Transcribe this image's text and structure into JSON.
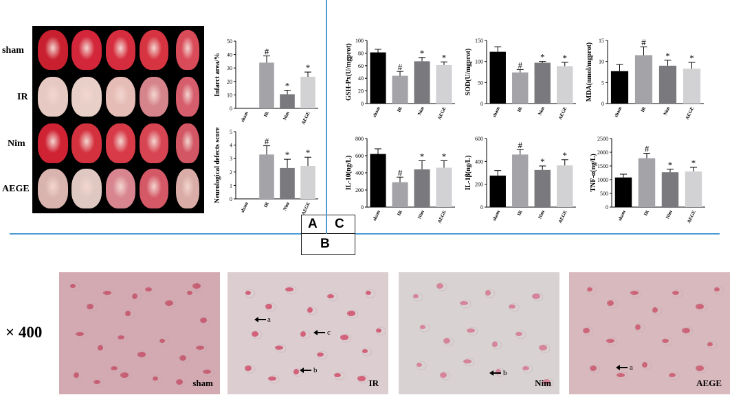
{
  "panel_letters": {
    "a": "A",
    "b": "B",
    "c": "C"
  },
  "slice_panel": {
    "groups": [
      "sham",
      "IR",
      "Nim",
      "AEGE"
    ]
  },
  "histology": {
    "magnification": "× 400",
    "panels": [
      {
        "label": "sham",
        "arrows": []
      },
      {
        "label": "IR",
        "arrows": [
          "a",
          "c",
          "b"
        ]
      },
      {
        "label": "Nim",
        "arrows": [
          "b"
        ]
      },
      {
        "label": "AEGE",
        "arrows": [
          "a"
        ]
      }
    ]
  },
  "colors": {
    "sham": "#000000",
    "IR": "#a3a3a8",
    "Nim": "#7a7a7e",
    "AEGE": "#d2d2d5",
    "divider": "#4a9bd5"
  },
  "chart_data": [
    {
      "id": "infarct",
      "type": "bar",
      "categories": [
        "sham",
        "IR",
        "Nim",
        "AEGE"
      ],
      "values": [
        0,
        34,
        10.5,
        23.5
      ],
      "errors": [
        0,
        5,
        3,
        3.5
      ],
      "marks": [
        "",
        "#",
        "*",
        "*"
      ],
      "ylabel": "Infarct area/%",
      "ylim": [
        0,
        50
      ],
      "ticks": [
        0,
        10,
        20,
        30,
        40,
        50
      ]
    },
    {
      "id": "neuro",
      "type": "bar",
      "categories": [
        "sham",
        "IR",
        "Nim",
        "AEGE"
      ],
      "values": [
        0,
        3.3,
        2.3,
        2.45
      ],
      "errors": [
        0,
        0.65,
        0.65,
        0.65
      ],
      "marks": [
        "",
        "#",
        "*",
        "*"
      ],
      "ylabel": "Neurological defects score",
      "ylim": [
        0,
        5
      ],
      "ticks": [
        0,
        1,
        2,
        3,
        4,
        5
      ]
    },
    {
      "id": "gsh",
      "type": "bar",
      "categories": [
        "sham",
        "IR",
        "Nim",
        "AEGE"
      ],
      "values": [
        81,
        44,
        67,
        61
      ],
      "errors": [
        5,
        7,
        6,
        5
      ],
      "marks": [
        "",
        "#",
        "*",
        "*"
      ],
      "ylabel": "GSH-Px(U/mgprot)",
      "ylim": [
        0,
        100
      ],
      "ticks": [
        0,
        20,
        40,
        60,
        80,
        100
      ]
    },
    {
      "id": "sod",
      "type": "bar",
      "categories": [
        "sham",
        "IR",
        "Nim",
        "AEGE"
      ],
      "values": [
        123,
        74,
        97,
        89
      ],
      "errors": [
        12,
        7,
        3,
        9
      ],
      "marks": [
        "",
        "#",
        "*",
        "*"
      ],
      "ylabel": "SOD(U/mgprot)",
      "ylim": [
        0,
        150
      ],
      "ticks": [
        0,
        50,
        100,
        150
      ]
    },
    {
      "id": "mda",
      "type": "bar",
      "categories": [
        "sham",
        "IR",
        "Nim",
        "AEGE"
      ],
      "values": [
        7.7,
        11.5,
        9,
        8.3
      ],
      "errors": [
        1.6,
        2,
        1.3,
        1.5
      ],
      "marks": [
        "",
        "#",
        "*",
        "*"
      ],
      "ylabel": "MDA(nmol/mgprot)",
      "ylim": [
        0,
        15
      ],
      "ticks": [
        0,
        5,
        10,
        15
      ]
    },
    {
      "id": "il10",
      "type": "bar",
      "categories": [
        "sham",
        "IR",
        "Nim",
        "AEGE"
      ],
      "values": [
        620,
        290,
        440,
        460
      ],
      "errors": [
        60,
        60,
        100,
        80
      ],
      "marks": [
        "",
        "#",
        "*",
        "*"
      ],
      "ylabel": "IL-10(ng/L)",
      "ylim": [
        0,
        800
      ],
      "ticks": [
        0,
        200,
        400,
        600,
        800
      ]
    },
    {
      "id": "il1b",
      "type": "bar",
      "categories": [
        "sham",
        "IR",
        "Nim",
        "AEGE"
      ],
      "values": [
        275,
        460,
        325,
        365
      ],
      "errors": [
        45,
        45,
        35,
        50
      ],
      "marks": [
        "",
        "#",
        "*",
        "*"
      ],
      "ylabel": "IL-1β(ng/L)",
      "ylim": [
        0,
        600
      ],
      "ticks": [
        0,
        200,
        400,
        600
      ]
    },
    {
      "id": "tnf",
      "type": "bar",
      "categories": [
        "sham",
        "IR",
        "Nim",
        "AEGE"
      ],
      "values": [
        1080,
        1780,
        1270,
        1300
      ],
      "errors": [
        120,
        180,
        110,
        150
      ],
      "marks": [
        "",
        "#",
        "*",
        "*"
      ],
      "ylabel": "TNF-α(ng/L)",
      "ylim": [
        0,
        2500
      ],
      "ticks": [
        0,
        500,
        1000,
        1500,
        2000,
        2500
      ]
    }
  ]
}
